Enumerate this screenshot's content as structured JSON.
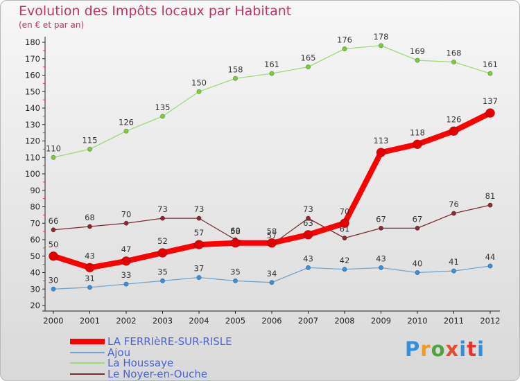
{
  "header": {
    "title": "Evolution des Impôts locaux par Habitant",
    "subtitle": "(en € et par an)"
  },
  "logo": {
    "text": "Proxiti",
    "colors": [
      "#2f8fe0",
      "#f39a1f",
      "#4ba63a",
      "#e84a2f",
      "#2f8fe0",
      "#e8342f",
      "#2f8fe0"
    ]
  },
  "chart_data": {
    "type": "line",
    "x": [
      "2000",
      "2001",
      "2002",
      "2003",
      "2004",
      "2005",
      "2006",
      "2007",
      "2008",
      "2009",
      "2010",
      "2011",
      "2012"
    ],
    "ylim": [
      20,
      180
    ],
    "yticks": [
      20,
      30,
      40,
      50,
      60,
      70,
      80,
      90,
      100,
      110,
      120,
      130,
      140,
      150,
      160,
      170,
      180
    ],
    "grid": false,
    "legend_position": "bottom-left",
    "series": [
      {
        "name": "Le Noyer-en-Ouche",
        "color": "#7b2a2f",
        "point_color": "#8a2b32",
        "width": 1.3,
        "radius": 3.2,
        "values": [
          66,
          68,
          70,
          73,
          73,
          60,
          57,
          73,
          61,
          67,
          67,
          76,
          81
        ],
        "labels": [
          "66",
          "68",
          "70",
          "73",
          "73",
          "60",
          "57",
          "73",
          "61",
          "67",
          "67",
          "76",
          "81"
        ]
      },
      {
        "name": "La Houssaye",
        "color": "#9cdc72",
        "point_color": "#7ccb3c",
        "width": 1.3,
        "radius": 3.2,
        "values": [
          110,
          115,
          126,
          135,
          150,
          158,
          161,
          165,
          176,
          178,
          169,
          168,
          161
        ],
        "labels": [
          "110",
          "115",
          "126",
          "135",
          "150",
          "158",
          "161",
          "165",
          "176",
          "178",
          "169",
          "168",
          "161"
        ]
      },
      {
        "name": "Ajou",
        "color": "#6fa4cf",
        "point_color": "#3b8ed8",
        "width": 1.3,
        "radius": 3.2,
        "values": [
          30,
          31,
          33,
          35,
          37,
          35,
          34,
          43,
          42,
          43,
          40,
          41,
          44
        ],
        "labels": [
          "30",
          "31",
          "33",
          "35",
          "37",
          "35",
          "34",
          "43",
          "42",
          "43",
          "40",
          "41",
          "44"
        ]
      },
      {
        "name": "LA FERRIèRE-SUR-RISLE",
        "color": "#ff0000",
        "point_color": "#e30000",
        "width": 8,
        "radius": 6.5,
        "values": [
          50,
          43,
          47,
          52,
          57,
          58,
          58,
          63,
          70,
          113,
          118,
          126,
          137
        ],
        "labels": [
          "50",
          "43",
          "47",
          "52",
          "57",
          "58",
          "58",
          "63",
          "70",
          "113",
          "118",
          "126",
          "137"
        ]
      }
    ],
    "legend_order": [
      "LA FERRIèRE-SUR-RISLE",
      "Ajou",
      "La Houssaye",
      "Le Noyer-en-Ouche"
    ]
  }
}
